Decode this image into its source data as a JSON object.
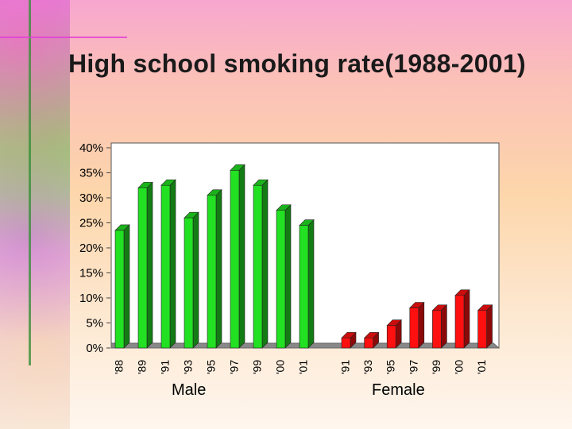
{
  "title": "High school smoking rate(1988-2001)",
  "chart_data": {
    "type": "bar",
    "y_ticks": [
      "40%",
      "35%",
      "30%",
      "25%",
      "20%",
      "15%",
      "10%",
      "5%",
      "0%"
    ],
    "ylim": [
      0,
      40
    ],
    "groups": [
      {
        "label": "Male",
        "color": "#22e022",
        "categories": [
          "'88",
          "'89",
          "'91",
          "'93",
          "'95",
          "'97",
          "'99",
          "'00",
          "'01"
        ],
        "values": [
          23.5,
          32,
          32.5,
          26,
          30.5,
          35.5,
          32.5,
          27.5,
          24.5
        ]
      },
      {
        "label": "Female",
        "color": "#ff1010",
        "categories": [
          "'91",
          "'93",
          "'95",
          "'97",
          "'99",
          "'00",
          "'01"
        ],
        "values": [
          2,
          2,
          4.5,
          8,
          7.5,
          10.5,
          7.5
        ]
      }
    ]
  }
}
